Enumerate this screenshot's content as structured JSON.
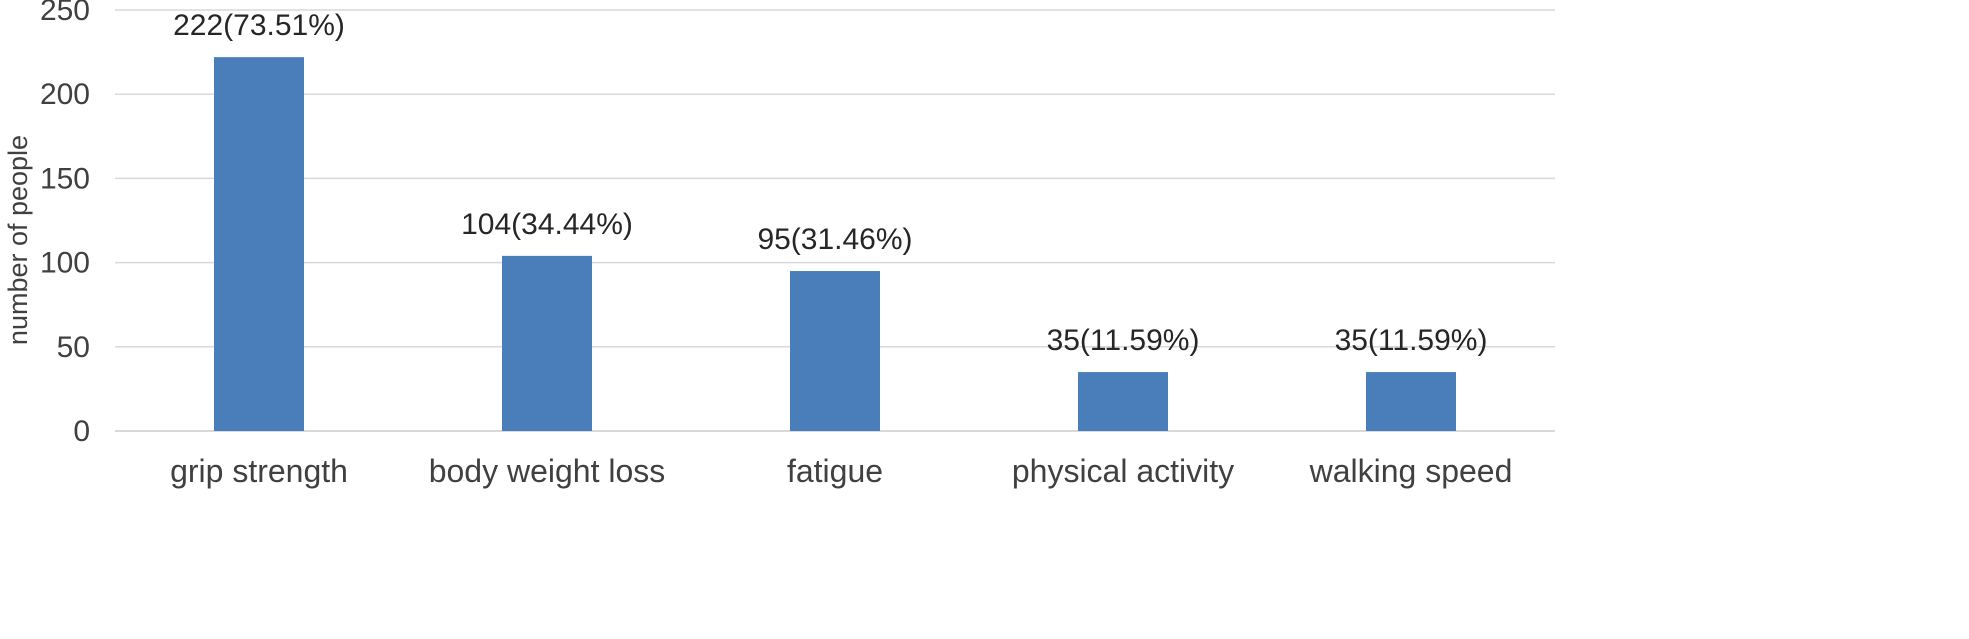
{
  "chart_data": {
    "type": "bar",
    "title": "",
    "xlabel": "",
    "ylabel": "number of people",
    "categories": [
      "grip strength",
      "body weight loss",
      "fatigue",
      "physical activity",
      "walking speed"
    ],
    "values": [
      222,
      104,
      95,
      35,
      35
    ],
    "data_labels": [
      "222(73.51%)",
      "104(34.44%)",
      "95(31.46%)",
      "35(11.59%)",
      "35(11.59%)"
    ],
    "ylim": [
      0,
      250
    ],
    "yticks": [
      0,
      50,
      100,
      150,
      200,
      250
    ],
    "grid": true,
    "legend": "none",
    "bar_color": "#4a7ebb",
    "grid_color": "#d9d9d9"
  }
}
